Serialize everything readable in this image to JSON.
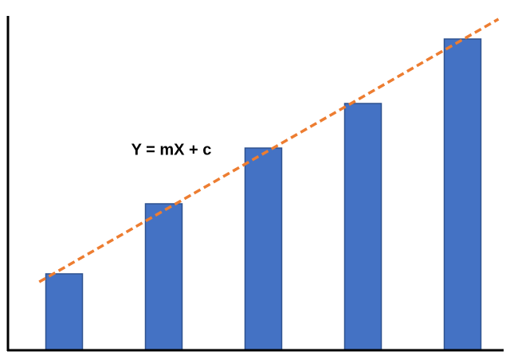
{
  "chart_data": {
    "type": "bar",
    "values": [
      96,
      184,
      254,
      310,
      391
    ],
    "color": "#4472c4",
    "ylim": [
      0,
      420
    ],
    "trend_line": {
      "color": "#ed7d31",
      "dashed": true
    },
    "annotation": "Y = mX + c"
  }
}
